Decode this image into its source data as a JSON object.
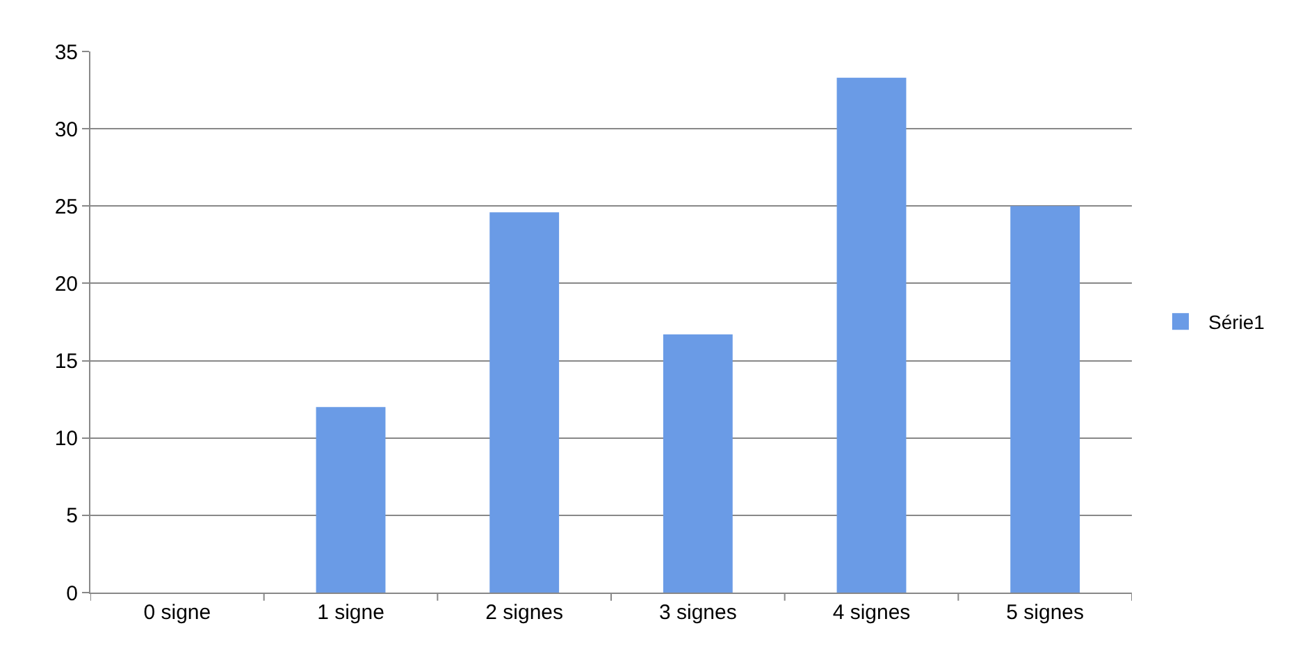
{
  "chart_data": {
    "type": "bar",
    "categories": [
      "0 signe",
      "1 signe",
      "2 signes",
      "3 signes",
      "4 signes",
      "5 signes"
    ],
    "series": [
      {
        "name": "Série1",
        "color": "#6a9be6",
        "values": [
          0,
          12,
          24.6,
          16.7,
          33.3,
          25
        ]
      }
    ],
    "ylim": [
      0,
      35
    ],
    "yticks": [
      0,
      5,
      10,
      15,
      20,
      25,
      30,
      35
    ],
    "grid": "y",
    "legend": "right"
  }
}
